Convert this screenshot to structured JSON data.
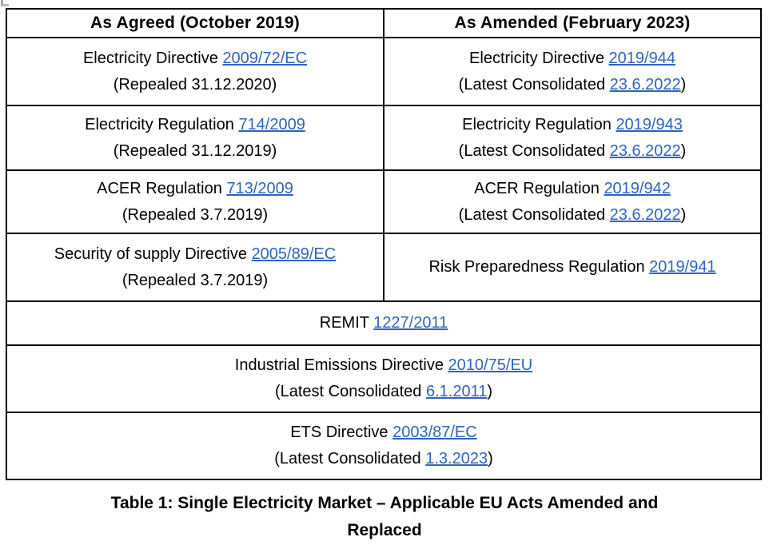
{
  "page": {
    "link_color": "#2f64be",
    "caption": {
      "line1": "Table 1: Single Electricity Market – Applicable EU Acts Amended and",
      "line2": "Replaced"
    }
  },
  "table": {
    "headers": [
      {
        "label": "As Agreed (October 2019)"
      },
      {
        "label": "As Amended (February 2023)"
      }
    ],
    "rows": [
      {
        "cells": [
          {
            "colspan": 1,
            "lines": [
              [
                {
                  "text": "Electricity Directive "
                },
                {
                  "link": "2009/72/EC"
                }
              ],
              [
                {
                  "text": "(Repealed 31.12.2020)"
                }
              ]
            ]
          },
          {
            "colspan": 1,
            "lines": [
              [
                {
                  "text": "Electricity Directive "
                },
                {
                  "link": "2019/944"
                }
              ],
              [
                {
                  "text": "(Latest Consolidated "
                },
                {
                  "link": "23.6.2022"
                },
                {
                  "text": ")"
                }
              ]
            ]
          }
        ]
      },
      {
        "cells": [
          {
            "colspan": 1,
            "lines": [
              [
                {
                  "text": "Electricity Regulation "
                },
                {
                  "link": "714/2009"
                }
              ],
              [
                {
                  "text": "(Repealed 31.12.2019)"
                }
              ]
            ]
          },
          {
            "colspan": 1,
            "lines": [
              [
                {
                  "text": "Electricity Regulation "
                },
                {
                  "link": "2019/943"
                }
              ],
              [
                {
                  "text": "(Latest Consolidated "
                },
                {
                  "link": "23.6.2022"
                },
                {
                  "text": ")"
                }
              ]
            ]
          }
        ]
      },
      {
        "cells": [
          {
            "colspan": 1,
            "lines": [
              [
                {
                  "text": "ACER Regulation "
                },
                {
                  "link": "713/2009"
                }
              ],
              [
                {
                  "text": "(Repealed 3.7.2019)"
                }
              ]
            ]
          },
          {
            "colspan": 1,
            "lines": [
              [
                {
                  "text": "ACER Regulation "
                },
                {
                  "link": "2019/942"
                }
              ],
              [
                {
                  "text": "(Latest Consolidated "
                },
                {
                  "link": "23.6.2022"
                },
                {
                  "text": ")"
                }
              ]
            ]
          }
        ]
      },
      {
        "cells": [
          {
            "colspan": 1,
            "lines": [
              [
                {
                  "text": "Security of supply Directive "
                },
                {
                  "link": "2005/89/EC"
                }
              ],
              [
                {
                  "text": "(Repealed 3.7.2019)"
                }
              ]
            ]
          },
          {
            "colspan": 1,
            "lines": [
              [
                {
                  "text": "Risk Preparedness Regulation "
                },
                {
                  "link": "2019/941"
                }
              ]
            ]
          }
        ]
      },
      {
        "cells": [
          {
            "colspan": 2,
            "lines": [
              [
                {
                  "text": "REMIT "
                },
                {
                  "link": "1227/2011"
                }
              ]
            ]
          }
        ]
      },
      {
        "cells": [
          {
            "colspan": 2,
            "lines": [
              [
                {
                  "text": "Industrial Emissions Directive "
                },
                {
                  "link": "2010/75/EU"
                }
              ],
              [
                {
                  "text": "(Latest Consolidated "
                },
                {
                  "link": "6.1.2011"
                },
                {
                  "text": ")"
                }
              ]
            ]
          }
        ]
      },
      {
        "cells": [
          {
            "colspan": 2,
            "lines": [
              [
                {
                  "text": "ETS Directive "
                },
                {
                  "link": "2003/87/EC"
                }
              ],
              [
                {
                  "text": "(Latest Consolidated "
                },
                {
                  "link": "1.3.2023"
                },
                {
                  "text": ")"
                }
              ]
            ]
          }
        ]
      }
    ]
  }
}
